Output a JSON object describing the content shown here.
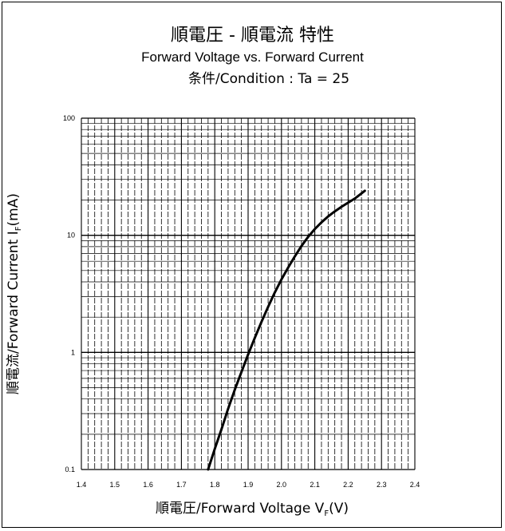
{
  "chart_data": {
    "type": "line",
    "title": "順電圧 - 順電流 特性",
    "subtitle": "Forward Voltage vs. Forward Current",
    "condition": "条件/Condition : Ta = 25",
    "xlabel": "順電圧/Forward Voltage",
    "xlabel_symbol": "V",
    "xlabel_sub": "F",
    "xlabel_unit": "(V)",
    "ylabel": "順電流/Forward Current",
    "ylabel_symbol": "I",
    "ylabel_sub": "F",
    "ylabel_unit": "(mA)",
    "xlim": [
      1.4,
      2.4
    ],
    "ylim": [
      0.1,
      100
    ],
    "yscale": "log",
    "grid": true,
    "x_ticks": [
      "1.4",
      "1.5",
      "1.6",
      "1.7",
      "1.8",
      "1.9",
      "2.0",
      "2.1",
      "2.2",
      "2.3",
      "2.4"
    ],
    "y_ticks": [
      "0.1",
      "1",
      "10",
      "100"
    ],
    "series": [
      {
        "x": [
          1.78,
          1.8,
          1.82,
          1.84,
          1.86,
          1.88,
          1.9,
          1.92,
          1.94,
          1.96,
          1.98,
          2.0,
          2.02,
          2.04,
          2.06,
          2.08,
          2.1,
          2.12,
          2.14,
          2.16,
          2.18,
          2.2,
          2.22,
          2.25
        ],
        "y": [
          0.1,
          0.15,
          0.22,
          0.33,
          0.48,
          0.68,
          0.96,
          1.33,
          1.82,
          2.45,
          3.25,
          4.2,
          5.3,
          6.6,
          8.1,
          9.7,
          11.3,
          12.9,
          14.5,
          16.0,
          17.5,
          19.0,
          20.6,
          24
        ]
      }
    ]
  }
}
